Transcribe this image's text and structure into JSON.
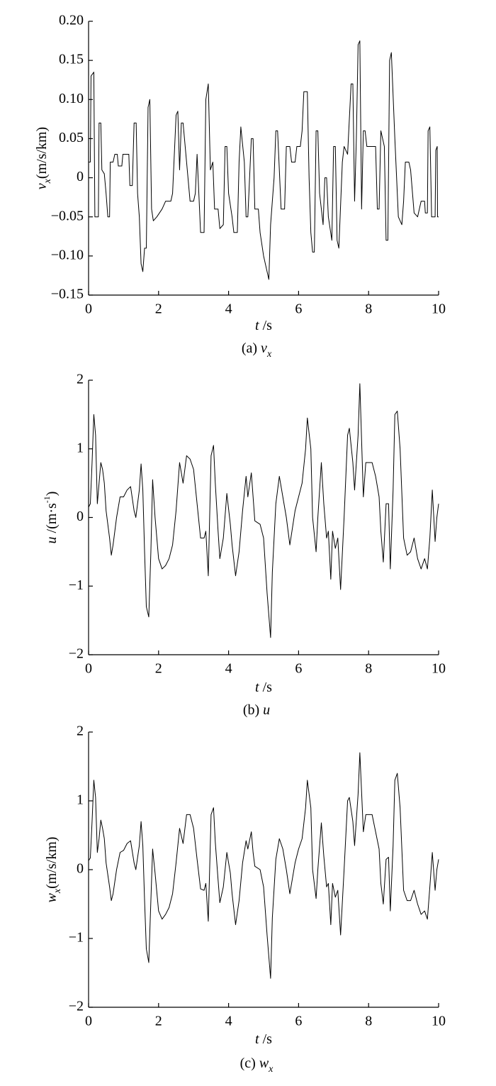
{
  "chart_data": [
    {
      "type": "line",
      "ylabel": [
        {
          "text": "v",
          "style": "italic"
        },
        {
          "text": "x",
          "style": "italic sub"
        },
        {
          "text": "(m/s/km)"
        }
      ],
      "xlabel": [
        {
          "text": "t",
          "style": "italic"
        },
        {
          "text": " /s"
        }
      ],
      "caption": [
        {
          "text": "(a) "
        },
        {
          "text": "v",
          "style": "italic"
        },
        {
          "text": "x",
          "style": "italic sub"
        }
      ],
      "color": "#000000",
      "xlim": [
        0,
        10
      ],
      "xticks": [
        0,
        2,
        4,
        6,
        8,
        10
      ],
      "ylim": [
        -0.15,
        0.2
      ],
      "yticks": [
        {
          "value": -0.15,
          "label": "−0.15"
        },
        {
          "value": -0.1,
          "label": "−0.10"
        },
        {
          "value": -0.05,
          "label": "−0.05"
        },
        0,
        0.05,
        {
          "value": 0.1,
          "label": "0.10"
        },
        0.15,
        {
          "value": 0.2,
          "label": "0.20"
        }
      ],
      "x": [
        0,
        0.05,
        0.07,
        0.15,
        0.18,
        0.28,
        0.3,
        0.35,
        0.38,
        0.45,
        0.5,
        0.55,
        0.6,
        0.62,
        0.7,
        0.75,
        0.82,
        0.85,
        0.95,
        0.98,
        1.15,
        1.18,
        1.25,
        1.3,
        1.36,
        1.4,
        1.45,
        1.5,
        1.55,
        1.6,
        1.65,
        1.7,
        1.75,
        1.8,
        1.85,
        1.95,
        2.1,
        2.2,
        2.35,
        2.4,
        2.5,
        2.55,
        2.6,
        2.65,
        2.7,
        2.8,
        2.9,
        3.0,
        3.05,
        3.1,
        3.2,
        3.3,
        3.35,
        3.42,
        3.48,
        3.55,
        3.6,
        3.7,
        3.75,
        3.85,
        3.9,
        3.95,
        4.0,
        4.1,
        4.15,
        4.25,
        4.3,
        4.35,
        4.45,
        4.5,
        4.55,
        4.6,
        4.65,
        4.7,
        4.75,
        4.85,
        4.9,
        5.0,
        5.1,
        5.15,
        5.2,
        5.3,
        5.35,
        5.4,
        5.5,
        5.6,
        5.65,
        5.75,
        5.8,
        5.9,
        5.95,
        6.05,
        6.1,
        6.15,
        6.25,
        6.3,
        6.35,
        6.4,
        6.45,
        6.5,
        6.55,
        6.6,
        6.7,
        6.75,
        6.8,
        6.85,
        6.95,
        7.0,
        7.05,
        7.1,
        7.15,
        7.25,
        7.3,
        7.4,
        7.5,
        7.55,
        7.6,
        7.65,
        7.7,
        7.75,
        7.8,
        7.85,
        7.9,
        7.95,
        8.2,
        8.25,
        8.3,
        8.35,
        8.45,
        8.5,
        8.55,
        8.6,
        8.65,
        8.75,
        8.8,
        8.85,
        8.95,
        9.0,
        9.05,
        9.15,
        9.2,
        9.3,
        9.4,
        9.5,
        9.6,
        9.62,
        9.68,
        9.7,
        9.75,
        9.8,
        9.9,
        9.92,
        9.96,
        9.97,
        10
      ],
      "values": [
        0.02,
        0.02,
        0.13,
        0.135,
        -0.05,
        -0.05,
        0.07,
        0.07,
        0.01,
        0.005,
        -0.02,
        -0.05,
        -0.05,
        0.02,
        0.02,
        0.03,
        0.03,
        0.015,
        0.015,
        0.03,
        0.03,
        -0.01,
        -0.01,
        0.07,
        0.07,
        -0.02,
        -0.05,
        -0.11,
        -0.12,
        -0.09,
        -0.09,
        0.09,
        0.1,
        -0.04,
        -0.055,
        -0.05,
        -0.04,
        -0.03,
        -0.03,
        -0.02,
        0.08,
        0.085,
        0.01,
        0.07,
        0.07,
        0.02,
        -0.03,
        -0.03,
        -0.02,
        0.03,
        -0.07,
        -0.07,
        0.1,
        0.12,
        0.01,
        0.02,
        -0.04,
        -0.04,
        -0.065,
        -0.06,
        0.04,
        0.04,
        -0.02,
        -0.05,
        -0.07,
        -0.07,
        0.02,
        0.065,
        0.02,
        -0.05,
        -0.05,
        0,
        0.05,
        0.05,
        -0.04,
        -0.04,
        -0.07,
        -0.1,
        -0.12,
        -0.13,
        -0.06,
        0,
        0.06,
        0.06,
        -0.04,
        -0.04,
        0.04,
        0.04,
        0.02,
        0.02,
        0.04,
        0.04,
        0.06,
        0.11,
        0.11,
        0,
        -0.07,
        -0.095,
        -0.095,
        0.06,
        0.06,
        -0.02,
        -0.06,
        0,
        0,
        -0.05,
        -0.08,
        0.04,
        0.04,
        -0.08,
        -0.09,
        0.02,
        0.04,
        0.03,
        0.12,
        0.12,
        -0.03,
        0.05,
        0.17,
        0.175,
        -0.04,
        0.06,
        0.06,
        0.04,
        0.04,
        -0.04,
        -0.04,
        0.06,
        0.04,
        -0.08,
        -0.08,
        0.15,
        0.16,
        0.05,
        0,
        -0.05,
        -0.06,
        -0.03,
        0.02,
        0.02,
        0.01,
        -0.045,
        -0.05,
        -0.03,
        -0.03,
        -0.045,
        -0.045,
        0.06,
        0.065,
        -0.05,
        -0.05,
        0.035,
        0.04,
        -0.05,
        -0.05
      ]
    },
    {
      "type": "line",
      "ylabel": [
        {
          "text": "u",
          "style": "italic"
        },
        {
          "text": " /(m·s"
        },
        {
          "text": "-1",
          "style": "sup"
        },
        {
          "text": ")"
        }
      ],
      "xlabel": [
        {
          "text": "t",
          "style": "italic"
        },
        {
          "text": " /s"
        }
      ],
      "caption": [
        {
          "text": "(b) "
        },
        {
          "text": "u",
          "style": "italic"
        }
      ],
      "color": "#000000",
      "xlim": [
        0,
        10
      ],
      "xticks": [
        0,
        2,
        4,
        6,
        8,
        10
      ],
      "ylim": [
        -2,
        2
      ],
      "yticks": [
        {
          "value": -2,
          "label": "−2"
        },
        {
          "value": -1,
          "label": "−1"
        },
        0,
        1,
        2
      ],
      "x": [
        0,
        0.05,
        0.1,
        0.15,
        0.2,
        0.25,
        0.3,
        0.35,
        0.4,
        0.45,
        0.5,
        0.6,
        0.65,
        0.7,
        0.8,
        0.9,
        1.0,
        1.1,
        1.2,
        1.3,
        1.35,
        1.45,
        1.5,
        1.55,
        1.6,
        1.65,
        1.72,
        1.78,
        1.83,
        1.9,
        2.0,
        2.1,
        2.2,
        2.3,
        2.4,
        2.5,
        2.6,
        2.7,
        2.8,
        2.9,
        3.0,
        3.1,
        3.2,
        3.3,
        3.35,
        3.42,
        3.5,
        3.57,
        3.62,
        3.7,
        3.75,
        3.85,
        3.95,
        4.05,
        4.1,
        4.2,
        4.3,
        4.4,
        4.5,
        4.55,
        4.65,
        4.7,
        4.75,
        4.9,
        5.0,
        5.1,
        5.2,
        5.25,
        5.35,
        5.45,
        5.55,
        5.65,
        5.75,
        5.9,
        6.0,
        6.1,
        6.2,
        6.25,
        6.35,
        6.4,
        6.5,
        6.55,
        6.65,
        6.72,
        6.8,
        6.85,
        6.92,
        6.97,
        7.05,
        7.12,
        7.2,
        7.3,
        7.4,
        7.45,
        7.55,
        7.6,
        7.7,
        7.75,
        7.85,
        7.92,
        8.1,
        8.2,
        8.3,
        8.35,
        8.42,
        8.5,
        8.57,
        8.62,
        8.7,
        8.75,
        8.82,
        8.9,
        9.0,
        9.1,
        9.2,
        9.3,
        9.4,
        9.5,
        9.6,
        9.68,
        9.75,
        9.82,
        9.9,
        9.95,
        10.0
      ],
      "values": [
        0.15,
        0.2,
        0.8,
        1.5,
        1.2,
        0.2,
        0.5,
        0.8,
        0.7,
        0.5,
        0.1,
        -0.3,
        -0.55,
        -0.4,
        0,
        0.3,
        0.3,
        0.4,
        0.45,
        0.1,
        0,
        0.4,
        0.78,
        0.4,
        -0.5,
        -1.3,
        -1.45,
        -0.5,
        0.55,
        0,
        -0.6,
        -0.75,
        -0.7,
        -0.6,
        -0.4,
        0.1,
        0.8,
        0.5,
        0.9,
        0.85,
        0.7,
        0.2,
        -0.3,
        -0.3,
        -0.2,
        -0.85,
        0.9,
        1.05,
        0.5,
        -0.2,
        -0.6,
        -0.3,
        0.35,
        -0.1,
        -0.4,
        -0.85,
        -0.5,
        0.1,
        0.6,
        0.3,
        0.65,
        0.3,
        -0.05,
        -0.1,
        -0.3,
        -1.1,
        -1.75,
        -0.8,
        0.2,
        0.6,
        0.3,
        0,
        -0.4,
        0.1,
        0.3,
        0.5,
        1.0,
        1.45,
        1.0,
        0,
        -0.5,
        0,
        0.8,
        0.2,
        -0.3,
        -0.2,
        -0.9,
        -0.2,
        -0.45,
        -0.3,
        -1.05,
        0,
        1.2,
        1.3,
        0.8,
        0.4,
        1.2,
        1.95,
        0.3,
        0.8,
        0.8,
        0.6,
        0.3,
        -0.2,
        -0.65,
        0.2,
        0.2,
        -0.75,
        0.4,
        1.5,
        1.55,
        1.0,
        -0.3,
        -0.55,
        -0.5,
        -0.3,
        -0.6,
        -0.75,
        -0.6,
        -0.75,
        -0.3,
        0.4,
        -0.35,
        0,
        0.2
      ]
    },
    {
      "type": "line",
      "ylabel": [
        {
          "text": "w",
          "style": "italic"
        },
        {
          "text": "x",
          "style": "italic sub"
        },
        {
          "text": "(m/s/km)"
        }
      ],
      "xlabel": [
        {
          "text": "t",
          "style": "italic"
        },
        {
          "text": " /s"
        }
      ],
      "caption": [
        {
          "text": "(c) "
        },
        {
          "text": "w",
          "style": "italic"
        },
        {
          "text": "x",
          "style": "italic sub"
        }
      ],
      "color": "#000000",
      "xlim": [
        0,
        10
      ],
      "xticks": [
        0,
        2,
        4,
        6,
        8,
        10
      ],
      "ylim": [
        -2,
        2
      ],
      "yticks": [
        {
          "value": -2,
          "label": "−2"
        },
        {
          "value": -1,
          "label": "−1"
        },
        0,
        1,
        2
      ],
      "x": [
        0,
        0.05,
        0.1,
        0.15,
        0.2,
        0.25,
        0.3,
        0.35,
        0.4,
        0.45,
        0.5,
        0.6,
        0.65,
        0.7,
        0.8,
        0.9,
        1.0,
        1.1,
        1.2,
        1.3,
        1.35,
        1.45,
        1.5,
        1.55,
        1.6,
        1.65,
        1.72,
        1.78,
        1.83,
        1.9,
        2.0,
        2.1,
        2.2,
        2.3,
        2.4,
        2.5,
        2.6,
        2.7,
        2.8,
        2.9,
        3.0,
        3.1,
        3.2,
        3.3,
        3.35,
        3.42,
        3.5,
        3.57,
        3.62,
        3.7,
        3.75,
        3.85,
        3.95,
        4.05,
        4.1,
        4.2,
        4.3,
        4.4,
        4.5,
        4.55,
        4.65,
        4.7,
        4.75,
        4.9,
        5.0,
        5.1,
        5.2,
        5.25,
        5.35,
        5.45,
        5.55,
        5.65,
        5.75,
        5.9,
        6.0,
        6.1,
        6.2,
        6.25,
        6.35,
        6.4,
        6.5,
        6.55,
        6.65,
        6.72,
        6.8,
        6.85,
        6.92,
        6.97,
        7.05,
        7.12,
        7.2,
        7.3,
        7.4,
        7.45,
        7.55,
        7.6,
        7.7,
        7.75,
        7.85,
        7.92,
        8.1,
        8.2,
        8.3,
        8.35,
        8.42,
        8.5,
        8.57,
        8.62,
        8.7,
        8.75,
        8.82,
        8.9,
        9.0,
        9.1,
        9.2,
        9.3,
        9.4,
        9.5,
        9.6,
        9.68,
        9.75,
        9.82,
        9.9,
        9.95,
        10.0
      ],
      "values": [
        0.13,
        0.17,
        0.7,
        1.3,
        1.05,
        0.25,
        0.45,
        0.72,
        0.6,
        0.45,
        0.1,
        -0.25,
        -0.45,
        -0.35,
        0,
        0.25,
        0.28,
        0.38,
        0.42,
        0.1,
        0,
        0.35,
        0.7,
        0.35,
        -0.45,
        -1.15,
        -1.35,
        -0.45,
        0.3,
        -0.05,
        -0.6,
        -0.72,
        -0.65,
        -0.55,
        -0.35,
        0.1,
        0.6,
        0.38,
        0.8,
        0.8,
        0.6,
        0.15,
        -0.28,
        -0.3,
        -0.2,
        -0.75,
        0.8,
        0.9,
        0.4,
        -0.15,
        -0.48,
        -0.25,
        0.25,
        -0.05,
        -0.35,
        -0.8,
        -0.45,
        0.1,
        0.42,
        0.3,
        0.55,
        0.25,
        0.05,
        0,
        -0.25,
        -0.95,
        -1.58,
        -0.7,
        0.15,
        0.45,
        0.3,
        0,
        -0.35,
        0.1,
        0.3,
        0.45,
        0.9,
        1.3,
        0.9,
        0,
        -0.42,
        0,
        0.68,
        0.2,
        -0.25,
        -0.2,
        -0.8,
        -0.2,
        -0.4,
        -0.3,
        -0.95,
        0,
        1.0,
        1.05,
        0.7,
        0.35,
        1.1,
        1.7,
        0.55,
        0.8,
        0.8,
        0.55,
        0.3,
        -0.2,
        -0.5,
        0.15,
        0.18,
        -0.6,
        0.35,
        1.3,
        1.4,
        0.9,
        -0.3,
        -0.45,
        -0.45,
        -0.3,
        -0.5,
        -0.65,
        -0.6,
        -0.72,
        -0.25,
        0.25,
        -0.3,
        0,
        0.15
      ]
    }
  ]
}
